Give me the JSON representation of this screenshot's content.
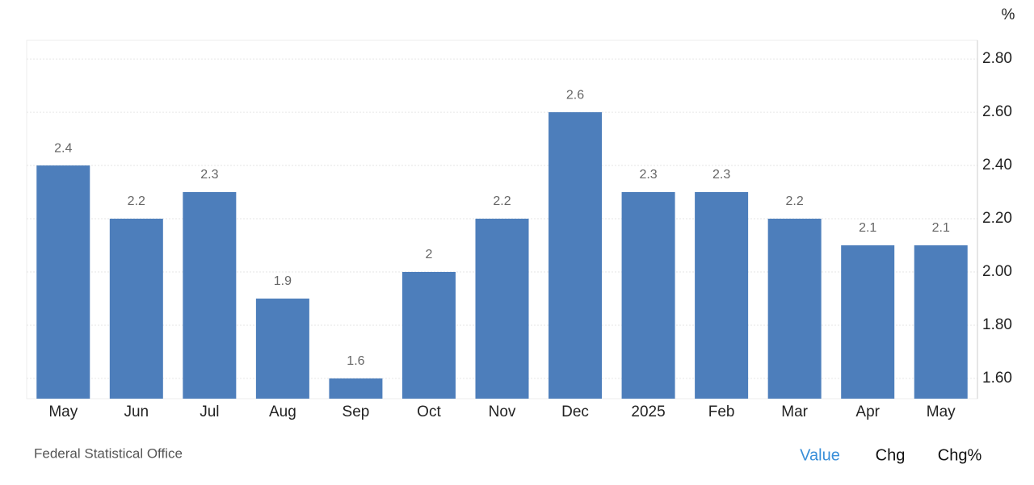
{
  "chart_data": {
    "type": "bar",
    "unit": "%",
    "source": "Federal Statistical Office",
    "tabs": [
      "Value",
      "Chg",
      "Chg%"
    ],
    "categories": [
      "May",
      "Jun",
      "Jul",
      "Aug",
      "Sep",
      "Oct",
      "Nov",
      "Dec",
      "2025",
      "Feb",
      "Mar",
      "Apr",
      "May"
    ],
    "values": [
      2.4,
      2.2,
      2.3,
      1.9,
      1.6,
      2,
      2.2,
      2.6,
      2.3,
      2.3,
      2.2,
      2.1,
      2.1
    ],
    "color": "#4d7ebb",
    "ylim": [
      1.524,
      2.87
    ],
    "yticks": [
      {
        "value": 1.6,
        "label": "1.60"
      },
      {
        "value": 1.8,
        "label": "1.80"
      },
      {
        "value": 2.0,
        "label": "2.00"
      },
      {
        "value": 2.2,
        "label": "2.20"
      },
      {
        "value": 2.4,
        "label": "2.40"
      },
      {
        "value": 2.6,
        "label": "2.60"
      },
      {
        "value": 2.8,
        "label": "2.80"
      }
    ],
    "grid": true
  }
}
